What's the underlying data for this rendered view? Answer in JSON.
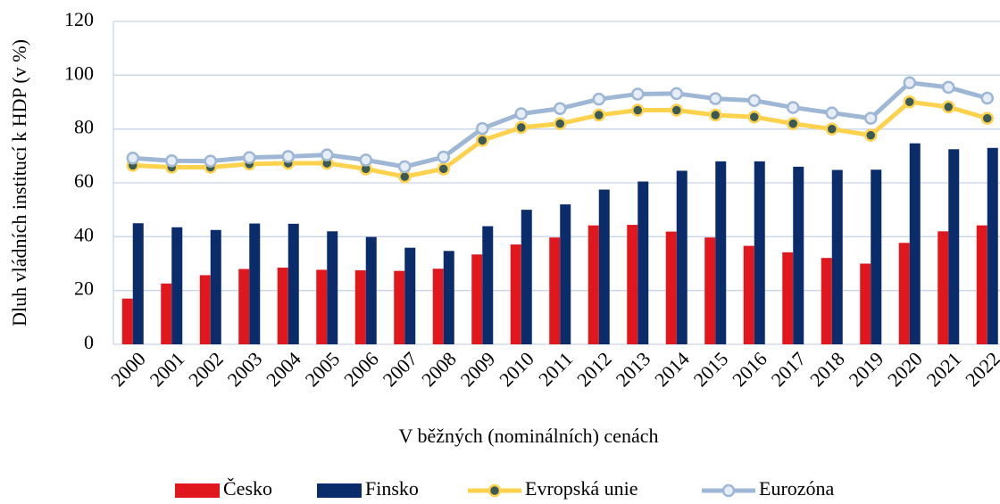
{
  "chart_data": {
    "type": "bar",
    "y_label": "Dluh vládních institucí k HDP (v %)",
    "x_label": "V běžných (nominálních) cenách",
    "categories": [
      "2000",
      "2001",
      "2002",
      "2003",
      "2004",
      "2005",
      "2006",
      "2007",
      "2008",
      "2009",
      "2010",
      "2011",
      "2012",
      "2013",
      "2014",
      "2015",
      "2016",
      "2017",
      "2018",
      "2019",
      "2020",
      "2021",
      "2022"
    ],
    "series": [
      {
        "name": "Česko",
        "type": "bar",
        "color": "#e0181e",
        "values": [
          17,
          22.6,
          25.7,
          28,
          28.5,
          27.7,
          27.5,
          27.3,
          28.1,
          33.4,
          37.1,
          39.7,
          44.2,
          44.4,
          41.9,
          39.7,
          36.6,
          34.2,
          32.1,
          30,
          37.7,
          42,
          44.2
        ]
      },
      {
        "name": "Finsko",
        "type": "bar",
        "color": "#0b2c6b",
        "values": [
          45,
          43.5,
          42.5,
          44.9,
          44.8,
          42,
          39.9,
          35.9,
          34.7,
          43.9,
          50,
          52,
          57.5,
          60.5,
          64.5,
          68,
          68,
          66,
          64.8,
          64.9,
          74.7,
          72.5,
          73
        ]
      },
      {
        "name": "Evropská unie",
        "type": "line",
        "color": "#ffd24d",
        "marker_color": "#3c5a55",
        "values": [
          66.5,
          65.8,
          65.8,
          67,
          67.3,
          67.3,
          65.2,
          62.3,
          65.2,
          75.8,
          80.6,
          82,
          85.2,
          87,
          87,
          85.2,
          84.5,
          82,
          80,
          77.7,
          90.1,
          88.2,
          84
        ]
      },
      {
        "name": "Eurozóna",
        "type": "line",
        "color": "#9db7d5",
        "marker_color": "#e6edf6",
        "values": [
          69.2,
          68.2,
          68.1,
          69.4,
          69.8,
          70.4,
          68.5,
          66,
          69.6,
          80.2,
          85.7,
          87.6,
          91.1,
          93,
          93.2,
          91.3,
          90.6,
          88,
          86,
          84,
          97.2,
          95.5,
          91.5
        ]
      }
    ],
    "ylim": [
      0,
      120
    ],
    "yticks": [
      0,
      20,
      40,
      60,
      80,
      100,
      120
    ],
    "grid": true,
    "legend": "bottom"
  }
}
